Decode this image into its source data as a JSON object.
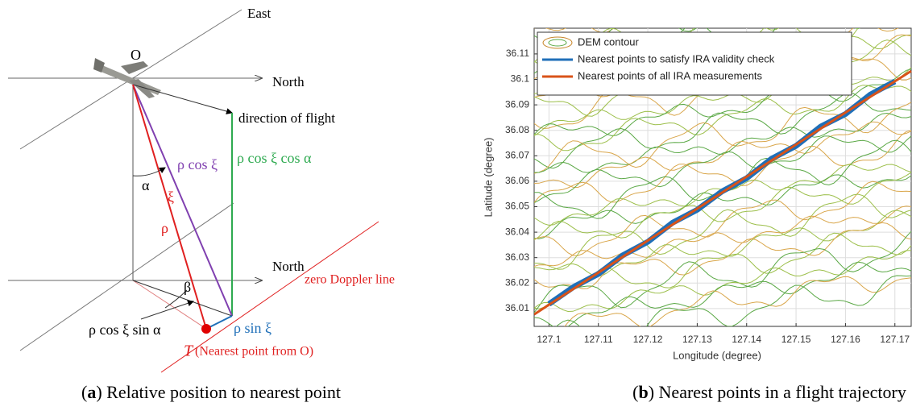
{
  "diagram": {
    "east": "East",
    "origin": "O",
    "north_top": "North",
    "direction": "direction of flight",
    "green_label": "ρ cos ξ cos α",
    "purple_label": "ρ cos ξ",
    "alpha": "α",
    "xi": "ξ",
    "rho": "ρ",
    "north_bottom": "North",
    "zero_doppler": "zero Doppler line",
    "beta": "β",
    "black_label": "ρ cos ξ sin α",
    "blue_label": "ρ sin ξ",
    "t": "T",
    "t_note": "(Nearest point from O)"
  },
  "captions": [
    {
      "open": "(",
      "label": "a",
      "text": ") Relative position to nearest point"
    },
    {
      "open": "(",
      "label": "b",
      "text": ") Nearest points in a flight trajectory"
    }
  ],
  "chart_data": {
    "type": "line",
    "xlabel": "Longitude (degree)",
    "ylabel": "Latitude (degree)",
    "xlim": [
      127.097,
      127.1733
    ],
    "ylim": [
      36.003,
      36.1201
    ],
    "xticks": [
      127.1,
      127.11,
      127.12,
      127.13,
      127.14,
      127.15,
      127.16,
      127.17
    ],
    "yticks": [
      36.01,
      36.02,
      36.03,
      36.04,
      36.05,
      36.06,
      36.07,
      36.08,
      36.09,
      36.1,
      36.11
    ],
    "grid": true,
    "legend": "upper left",
    "series": [
      {
        "name": "DEM contour",
        "color": "#c8862a"
      },
      {
        "name": "Nearest points to satisfy IRA validity check",
        "color": "#1f6fb8",
        "x": [
          127.1,
          127.105,
          127.11,
          127.115,
          127.12,
          127.125,
          127.13,
          127.135,
          127.14,
          127.145,
          127.15,
          127.155,
          127.16,
          127.165,
          127.17
        ],
        "values": [
          36.0118,
          36.0185,
          36.0236,
          36.031,
          36.0362,
          36.0437,
          36.0488,
          36.056,
          36.0612,
          36.0688,
          36.0739,
          36.0815,
          36.0864,
          36.094,
          36.0992
        ]
      },
      {
        "name": "Nearest points of all IRA measurements",
        "color": "#d95319",
        "x": [
          127.097,
          127.1,
          127.12,
          127.14,
          127.16,
          127.1733
        ],
        "values": [
          36.0077,
          36.0115,
          36.0367,
          36.0618,
          36.087,
          36.1033
        ]
      }
    ]
  }
}
